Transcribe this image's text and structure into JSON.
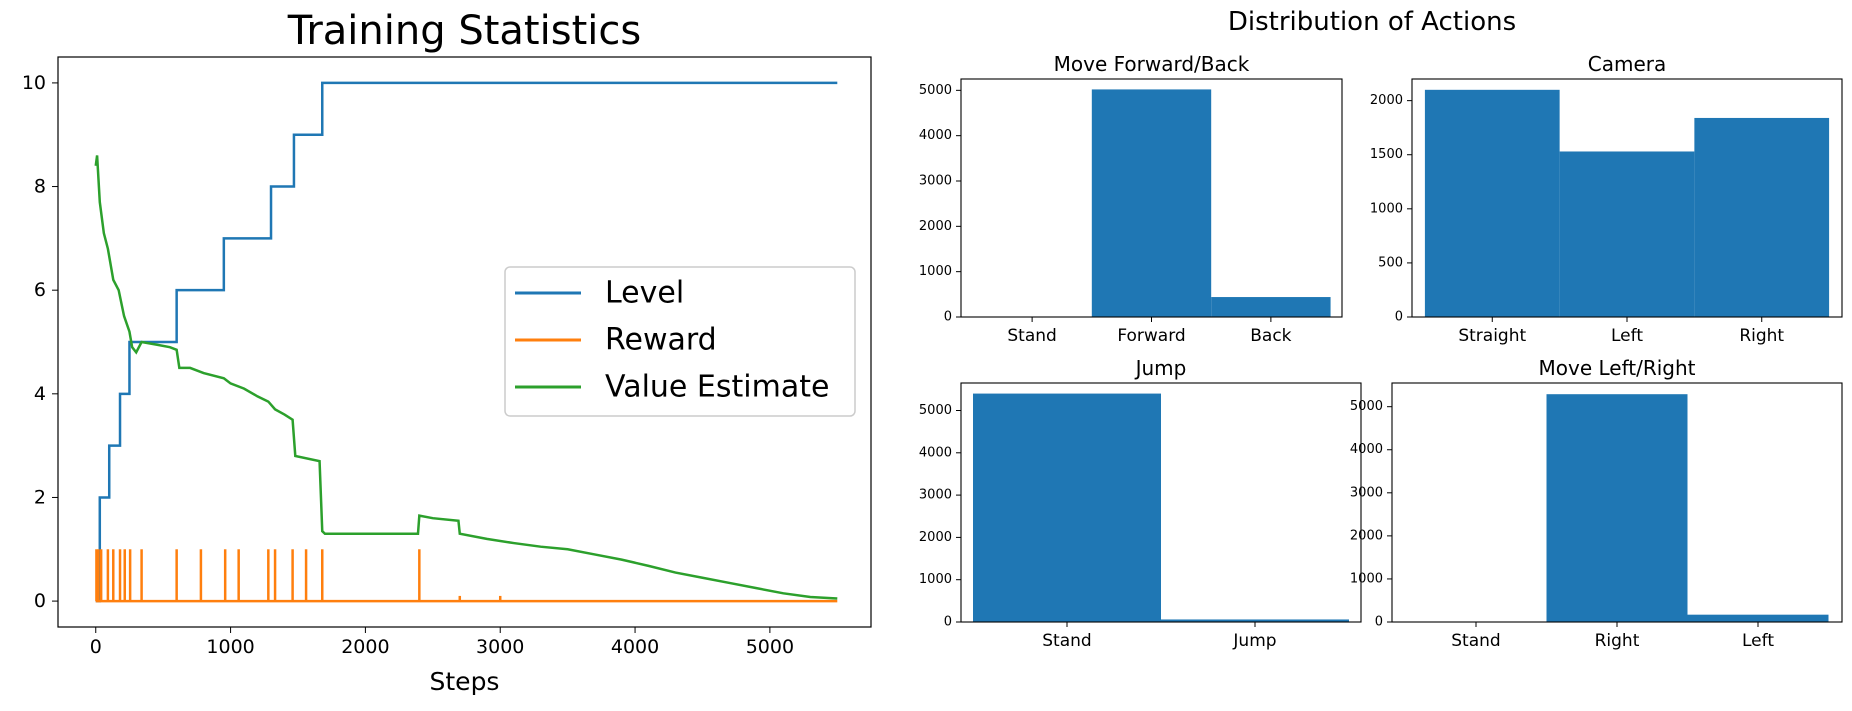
{
  "chart_data": [
    {
      "type": "line",
      "title": "Training Statistics",
      "xlabel": "Steps",
      "ylabel": "",
      "xlim": [
        -280,
        5750
      ],
      "ylim": [
        -0.5,
        10.5
      ],
      "xticks": [
        0,
        1000,
        2000,
        3000,
        4000,
        5000
      ],
      "xtick_labels": [
        "0",
        "1000",
        "2000",
        "3000",
        "4000",
        "5000"
      ],
      "yticks": [
        0,
        2,
        4,
        6,
        8,
        10
      ],
      "ytick_labels": [
        "0",
        "2",
        "4",
        "6",
        "8",
        "10"
      ],
      "legend_position": "center-right",
      "series": [
        {
          "name": "Level",
          "color": "#1f77b4",
          "x": [
            0,
            30,
            30,
            100,
            100,
            180,
            180,
            250,
            250,
            340,
            340,
            600,
            600,
            950,
            950,
            1300,
            1300,
            1470,
            1470,
            1680,
            1680,
            5500
          ],
          "y": [
            0,
            0,
            2,
            2,
            3,
            3,
            4,
            4,
            5,
            5,
            5,
            5,
            6,
            6,
            7,
            7,
            8,
            8,
            9,
            9,
            10,
            10
          ]
        },
        {
          "name": "Reward",
          "color": "#ff7f0e",
          "x": [
            0,
            5500
          ],
          "y": [
            0,
            0
          ],
          "spikes_x": [
            5,
            20,
            40,
            90,
            130,
            180,
            215,
            255,
            340,
            600,
            780,
            960,
            1060,
            1280,
            1330,
            1460,
            1560,
            1680,
            2400,
            2700,
            3000
          ],
          "spikes_y": [
            1,
            1,
            1,
            1,
            1,
            1,
            1,
            1,
            1,
            1,
            1,
            1,
            1,
            1,
            1,
            1,
            1,
            1,
            1,
            0.1,
            0.1
          ]
        },
        {
          "name": "Value Estimate",
          "color": "#2ca02c",
          "x": [
            0,
            10,
            30,
            60,
            90,
            130,
            170,
            210,
            250,
            270,
            300,
            340,
            450,
            550,
            600,
            620,
            700,
            800,
            950,
            1000,
            1100,
            1200,
            1280,
            1330,
            1400,
            1460,
            1480,
            1660,
            1680,
            1700,
            1800,
            2000,
            2200,
            2390,
            2400,
            2500,
            2690,
            2700,
            2900,
            3100,
            3300,
            3500,
            3700,
            3900,
            4100,
            4300,
            4500,
            4700,
            4900,
            5100,
            5300,
            5500
          ],
          "y": [
            8.4,
            8.6,
            7.7,
            7.1,
            6.8,
            6.2,
            6.0,
            5.5,
            5.2,
            4.9,
            4.8,
            5.0,
            4.95,
            4.9,
            4.85,
            4.5,
            4.5,
            4.4,
            4.3,
            4.2,
            4.1,
            3.95,
            3.85,
            3.7,
            3.6,
            3.5,
            2.8,
            2.7,
            1.35,
            1.3,
            1.3,
            1.3,
            1.3,
            1.3,
            1.65,
            1.6,
            1.55,
            1.3,
            1.2,
            1.12,
            1.05,
            1.0,
            0.9,
            0.8,
            0.68,
            0.55,
            0.45,
            0.35,
            0.25,
            0.15,
            0.08,
            0.05
          ]
        }
      ]
    },
    {
      "type": "bar",
      "suptitle": "Distribution of Actions",
      "title": "Move Forward/Back",
      "categories": [
        "Stand",
        "Forward",
        "Back"
      ],
      "values": [
        0,
        5020,
        440
      ],
      "ylim": [
        0,
        5250
      ],
      "yticks": [
        0,
        1000,
        2000,
        3000,
        4000,
        5000
      ],
      "color": "#1f77b4"
    },
    {
      "type": "bar",
      "title": "Camera",
      "categories": [
        "Straight",
        "Left",
        "Right"
      ],
      "values": [
        2100,
        1530,
        1840
      ],
      "ylim": [
        0,
        2200
      ],
      "yticks": [
        0,
        500,
        1000,
        1500,
        2000
      ],
      "color": "#1f77b4"
    },
    {
      "type": "bar",
      "title": "Jump",
      "categories": [
        "Stand",
        "Jump"
      ],
      "values": [
        5400,
        60
      ],
      "ylim": [
        0,
        5650
      ],
      "yticks": [
        0,
        1000,
        2000,
        3000,
        4000,
        5000
      ],
      "color": "#1f77b4"
    },
    {
      "type": "bar",
      "title": "Move Left/Right",
      "categories": [
        "Stand",
        "Right",
        "Left"
      ],
      "values": [
        0,
        5290,
        170
      ],
      "ylim": [
        0,
        5550
      ],
      "yticks": [
        0,
        1000,
        2000,
        3000,
        4000,
        5000
      ],
      "color": "#1f77b4"
    }
  ]
}
